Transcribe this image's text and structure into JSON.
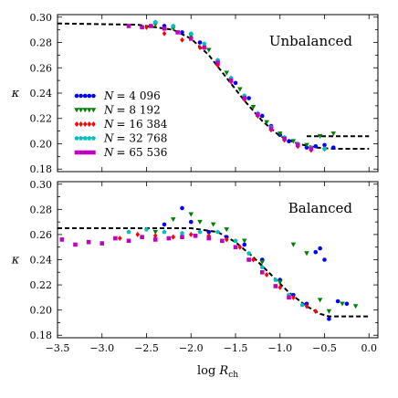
{
  "chart_data": [
    {
      "type": "scatter",
      "title": "Unbalanced",
      "xlabel": "log R_ch",
      "ylabel": "κ",
      "xlim": [
        -3.5,
        0.1
      ],
      "ylim": [
        0.178,
        0.302
      ],
      "yticks": [
        0.18,
        0.19,
        0.2,
        0.21,
        0.22,
        0.23,
        0.24,
        0.25,
        0.26,
        0.27,
        0.28,
        0.29,
        0.3
      ],
      "ytick_labels": [
        "0.18",
        "",
        "0.20",
        "",
        "0.22",
        "",
        "0.24",
        "",
        "0.26",
        "",
        "0.28",
        "",
        "0.30"
      ],
      "legend": {
        "placement": "middle-left",
        "entries": [
          {
            "prefix": "N",
            "value": "= 4 096",
            "color": "#0000ff",
            "marker": "circle"
          },
          {
            "prefix": "N",
            "value": "= 8 192",
            "color": "#008000",
            "marker": "triangle-down"
          },
          {
            "prefix": "N",
            "value": "= 16 384",
            "color": "#ff0000",
            "marker": "diamond"
          },
          {
            "prefix": "N",
            "value": "= 32 768",
            "color": "#00bfbf",
            "marker": "pentagon"
          },
          {
            "prefix": "N",
            "value": "= 65 536",
            "color": "#bf00bf",
            "marker": "square"
          }
        ]
      },
      "reference_lines": [
        {
          "style": "dashed",
          "x": [
            -3.5,
            -2.6,
            -2.2,
            -2.0,
            -1.8,
            -1.6,
            -1.4,
            -1.2,
            -1.0,
            -0.8,
            -0.6,
            -0.4,
            0.0
          ],
          "y": [
            0.295,
            0.294,
            0.29,
            0.283,
            0.27,
            0.252,
            0.234,
            0.218,
            0.206,
            0.2,
            0.197,
            0.196,
            0.196
          ]
        },
        {
          "style": "dashed",
          "x": [
            -0.7,
            0.0
          ],
          "y": [
            0.206,
            0.206
          ]
        }
      ],
      "series": [
        {
          "name": "N = 4 096",
          "color": "#0000ff",
          "marker": "circle",
          "x": [
            -2.3,
            -2.1,
            -1.9,
            -1.7,
            -1.5,
            -1.35,
            -1.2,
            -1.1,
            -1.0,
            -0.9,
            -0.8,
            -0.7,
            -0.6,
            -0.5,
            -0.4
          ],
          "y": [
            0.293,
            0.288,
            0.28,
            0.265,
            0.248,
            0.236,
            0.222,
            0.214,
            0.207,
            0.202,
            0.199,
            0.197,
            0.198,
            0.199,
            0.197
          ]
        },
        {
          "name": "N = 8 192",
          "color": "#008000",
          "marker": "triangle-down",
          "x": [
            -2.4,
            -2.2,
            -2.0,
            -1.8,
            -1.6,
            -1.45,
            -1.3,
            -1.15,
            -1.0,
            -0.85,
            -0.7,
            -0.55,
            -0.4
          ],
          "y": [
            0.294,
            0.291,
            0.285,
            0.274,
            0.256,
            0.243,
            0.229,
            0.217,
            0.208,
            0.202,
            0.199,
            0.206,
            0.208
          ]
        },
        {
          "name": "N = 16 384",
          "color": "#ff0000",
          "marker": "diamond",
          "x": [
            -2.5,
            -2.3,
            -2.1,
            -1.9,
            -1.7,
            -1.55,
            -1.4,
            -1.25,
            -1.1,
            -0.95,
            -0.8,
            -0.65,
            -0.5
          ],
          "y": [
            0.292,
            0.287,
            0.282,
            0.276,
            0.262,
            0.249,
            0.235,
            0.222,
            0.211,
            0.203,
            0.198,
            0.195,
            0.196
          ]
        },
        {
          "name": "N = 32 768",
          "color": "#00bfbf",
          "marker": "pentagon",
          "x": [
            -2.4,
            -2.2,
            -2.0,
            -1.85,
            -1.7,
            -1.55,
            -1.4,
            -1.25,
            -1.1,
            -0.95,
            -0.8,
            -0.65,
            -0.5
          ],
          "y": [
            0.296,
            0.293,
            0.287,
            0.279,
            0.266,
            0.252,
            0.238,
            0.224,
            0.213,
            0.205,
            0.2,
            0.197,
            0.196
          ]
        },
        {
          "name": "N = 65 536",
          "color": "#bf00bf",
          "marker": "square",
          "x": [
            -2.7,
            -2.55,
            -2.45,
            -2.3,
            -2.15,
            -2.0,
            -1.85,
            -1.7,
            -1.55,
            -1.4,
            -1.25,
            -1.1,
            -0.95,
            -0.8,
            -0.65
          ],
          "y": [
            0.293,
            0.292,
            0.293,
            0.291,
            0.288,
            0.283,
            0.276,
            0.264,
            0.25,
            0.236,
            0.223,
            0.212,
            0.204,
            0.199,
            0.196
          ]
        }
      ]
    },
    {
      "type": "scatter",
      "title": "Balanced",
      "xlabel": "log R_ch",
      "ylabel": "κ",
      "xlim": [
        -3.5,
        0.1
      ],
      "ylim": [
        0.178,
        0.302
      ],
      "xticks": [
        -3.5,
        -3.0,
        -2.5,
        -2.0,
        -1.5,
        -1.0,
        -0.5,
        0.0
      ],
      "xtick_labels": [
        "−3.5",
        "−3.0",
        "−2.5",
        "−2.0",
        "−1.5",
        "−1.0",
        "−0.5",
        "0.0"
      ],
      "yticks": [
        0.18,
        0.19,
        0.2,
        0.21,
        0.22,
        0.23,
        0.24,
        0.25,
        0.26,
        0.27,
        0.28,
        0.29,
        0.3
      ],
      "ytick_labels": [
        "0.18",
        "",
        "0.20",
        "",
        "0.22",
        "",
        "0.24",
        "",
        "0.26",
        "",
        "0.28",
        "",
        "0.30"
      ],
      "reference_lines": [
        {
          "style": "dashed",
          "x": [
            -3.5,
            -2.0,
            -1.7,
            -1.5,
            -1.3,
            -1.1,
            -0.9,
            -0.7,
            -0.55,
            -0.45,
            0.0
          ],
          "y": [
            0.265,
            0.265,
            0.262,
            0.254,
            0.242,
            0.228,
            0.214,
            0.203,
            0.197,
            0.195,
            0.195
          ]
        }
      ],
      "series": [
        {
          "name": "N = 4 096",
          "color": "#0000ff",
          "marker": "circle",
          "x": [
            -2.3,
            -2.1,
            -2.0,
            -1.8,
            -1.6,
            -1.4,
            -1.2,
            -1.0,
            -0.85,
            -0.7,
            -0.6,
            -0.55,
            -0.5,
            -0.45,
            -0.35,
            -0.25
          ],
          "y": [
            0.268,
            0.281,
            0.27,
            0.262,
            0.258,
            0.252,
            0.24,
            0.224,
            0.212,
            0.205,
            0.246,
            0.249,
            0.24,
            0.193,
            0.207,
            0.205
          ]
        },
        {
          "name": "N = 8 192",
          "color": "#008000",
          "marker": "triangle-down",
          "x": [
            -2.4,
            -2.2,
            -2.0,
            -1.9,
            -1.75,
            -1.6,
            -1.4,
            -1.2,
            -1.0,
            -0.85,
            -0.7,
            -0.55,
            -0.45,
            -0.3,
            -0.15
          ],
          "y": [
            0.262,
            0.272,
            0.276,
            0.27,
            0.268,
            0.264,
            0.255,
            0.238,
            0.222,
            0.252,
            0.245,
            0.208,
            0.199,
            0.205,
            0.203
          ]
        },
        {
          "name": "N = 16 384",
          "color": "#ff0000",
          "marker": "diamond",
          "x": [
            -2.8,
            -2.6,
            -2.4,
            -2.2,
            -2.0,
            -1.8,
            -1.6,
            -1.45,
            -1.3,
            -1.15,
            -1.0,
            -0.85,
            -0.7,
            -0.6
          ],
          "y": [
            0.257,
            0.26,
            0.259,
            0.258,
            0.26,
            0.259,
            0.256,
            0.25,
            0.24,
            0.228,
            0.218,
            0.21,
            0.203,
            0.199
          ]
        },
        {
          "name": "N = 32 768",
          "color": "#00bfbf",
          "marker": "pentagon",
          "x": [
            -2.7,
            -2.5,
            -2.3,
            -2.1,
            -1.9,
            -1.7,
            -1.5,
            -1.35,
            -1.2,
            -1.05,
            -0.9,
            -0.75
          ],
          "y": [
            0.262,
            0.264,
            0.262,
            0.261,
            0.262,
            0.262,
            0.255,
            0.245,
            0.234,
            0.224,
            0.212,
            0.204
          ]
        },
        {
          "name": "N = 65 536",
          "color": "#bf00bf",
          "marker": "square",
          "x": [
            -3.45,
            -3.3,
            -3.15,
            -3.0,
            -2.85,
            -2.7,
            -2.55,
            -2.4,
            -2.25,
            -2.1,
            -1.95,
            -1.8,
            -1.65,
            -1.5,
            -1.35,
            -1.2,
            -1.05,
            -0.9
          ],
          "y": [
            0.256,
            0.252,
            0.254,
            0.253,
            0.257,
            0.255,
            0.258,
            0.256,
            0.257,
            0.258,
            0.259,
            0.257,
            0.255,
            0.25,
            0.24,
            0.23,
            0.219,
            0.21
          ]
        }
      ]
    }
  ]
}
